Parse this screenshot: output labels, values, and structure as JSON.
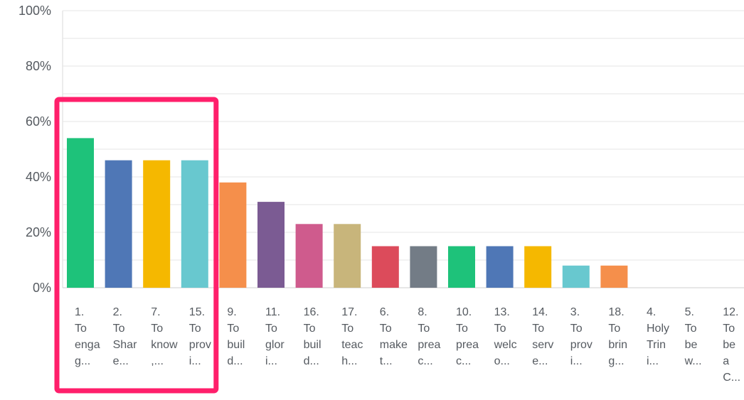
{
  "chart_data": {
    "type": "bar",
    "title": "",
    "xlabel": "",
    "ylabel": "",
    "ylim": [
      0,
      100
    ],
    "yticks": [
      "100%",
      "80%",
      "60%",
      "40%",
      "20%",
      "0%"
    ],
    "ytick_values": [
      100,
      80,
      60,
      40,
      20,
      0
    ],
    "grid": true,
    "categories": [
      "1. To enga g...",
      "2. To Shar e...",
      "7. To know ,...",
      "15. To prov i...",
      "9. To buil d...",
      "11. To glor i...",
      "16. To buil d...",
      "17. To teac h...",
      "6. To make t...",
      "8. To prea c...",
      "10. To prea c...",
      "13. To welc o...",
      "14. To serv e...",
      "3. To prov i...",
      "18. To brin g...",
      "4. Holy Trin i...",
      "5. To be w...",
      "12. To be a C..."
    ],
    "category_lines": [
      [
        "1.",
        "To",
        "enga",
        "g..."
      ],
      [
        "2.",
        "To",
        "Shar",
        "e..."
      ],
      [
        "7.",
        "To",
        "know",
        ",..."
      ],
      [
        "15.",
        "To",
        "prov",
        "i..."
      ],
      [
        "9.",
        "To",
        "buil",
        "d..."
      ],
      [
        "11.",
        "To",
        "glor",
        "i..."
      ],
      [
        "16.",
        "To",
        "buil",
        "d..."
      ],
      [
        "17.",
        "To",
        "teac",
        "h..."
      ],
      [
        "6.",
        "To",
        "make",
        "t..."
      ],
      [
        "8.",
        "To",
        "prea",
        "c..."
      ],
      [
        "10.",
        "To",
        "prea",
        "c..."
      ],
      [
        "13.",
        "To",
        "welc",
        "o..."
      ],
      [
        "14.",
        "To",
        "serv",
        "e..."
      ],
      [
        "3.",
        "To",
        "prov",
        "i..."
      ],
      [
        "18.",
        "To",
        "brin",
        "g..."
      ],
      [
        "4.",
        "Holy",
        "Trin",
        "i..."
      ],
      [
        "5.",
        "To",
        "be",
        "w..."
      ],
      [
        "12.",
        "To",
        "be",
        "a",
        "C..."
      ]
    ],
    "values": [
      54,
      46,
      46,
      46,
      38,
      31,
      23,
      23,
      15,
      15,
      15,
      15,
      15,
      8,
      8,
      0,
      0,
      0
    ],
    "colors": [
      "#1ec27a",
      "#4f77b6",
      "#f5b800",
      "#68c8cf",
      "#f58f4b",
      "#7b5b93",
      "#cf5b8d",
      "#c8b57b",
      "#dc4b5b",
      "#737c86",
      "#1ec27a",
      "#4f77b6",
      "#f5b800",
      "#68c8cf",
      "#f58f4b",
      "#7b5b93",
      "#cf5b8d",
      "#c8b57b"
    ],
    "highlight": {
      "from_index": 0,
      "to_index": 3,
      "color": "#ff1f6b"
    }
  }
}
